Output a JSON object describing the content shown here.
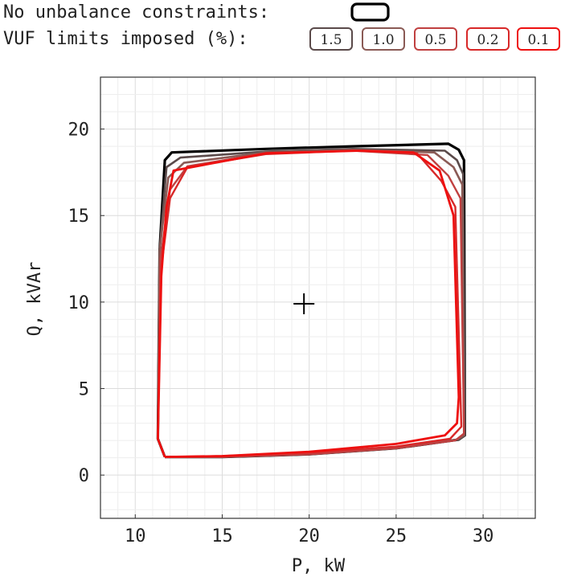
{
  "legend": {
    "no_constraint_label": "No unbalance constraints:",
    "vuf_label": "VUF limits imposed (%):"
  },
  "chart_data": {
    "type": "line",
    "xlabel": "P, kW",
    "ylabel": "Q, kVAr",
    "xlim": [
      8,
      33
    ],
    "ylim": [
      -2.5,
      23
    ],
    "xticks": [
      "10",
      "15",
      "20",
      "25",
      "30"
    ],
    "yticks": [
      "0",
      "5",
      "10",
      "15",
      "20"
    ],
    "grid": true,
    "marker": {
      "x": 19.7,
      "y": 9.9,
      "symbol": "+"
    },
    "series": [
      {
        "name": "No unbalance constraints",
        "color": "#000000",
        "width": 3.2,
        "points": [
          [
            11.7,
            1.05
          ],
          [
            11.3,
            2.1
          ],
          [
            11.4,
            13.0
          ],
          [
            11.7,
            18.2
          ],
          [
            12.1,
            18.65
          ],
          [
            17.5,
            18.85
          ],
          [
            22.5,
            19.0
          ],
          [
            28.0,
            19.15
          ],
          [
            28.6,
            18.8
          ],
          [
            28.9,
            18.2
          ],
          [
            28.95,
            2.3
          ],
          [
            28.6,
            2.05
          ],
          [
            25.0,
            1.55
          ],
          [
            20.0,
            1.2
          ],
          [
            15.0,
            1.05
          ],
          [
            11.7,
            1.05
          ]
        ]
      },
      {
        "name": "1.5",
        "color": "#5a4a4a",
        "width": 2.6,
        "points": [
          [
            11.7,
            1.05
          ],
          [
            11.3,
            2.1
          ],
          [
            11.4,
            13.0
          ],
          [
            11.8,
            17.8
          ],
          [
            12.6,
            18.35
          ],
          [
            17.5,
            18.7
          ],
          [
            22.5,
            18.85
          ],
          [
            27.8,
            18.75
          ],
          [
            28.5,
            18.2
          ],
          [
            28.85,
            17.4
          ],
          [
            28.95,
            2.3
          ],
          [
            28.6,
            2.05
          ],
          [
            25.0,
            1.55
          ],
          [
            20.0,
            1.2
          ],
          [
            15.0,
            1.05
          ],
          [
            11.7,
            1.05
          ]
        ]
      },
      {
        "name": "1.0",
        "color": "#8a5a55",
        "width": 2.6,
        "points": [
          [
            11.7,
            1.05
          ],
          [
            11.3,
            2.1
          ],
          [
            11.4,
            13.0
          ],
          [
            11.9,
            17.2
          ],
          [
            12.8,
            18.05
          ],
          [
            17.5,
            18.65
          ],
          [
            22.5,
            18.8
          ],
          [
            27.2,
            18.65
          ],
          [
            28.3,
            17.8
          ],
          [
            28.8,
            16.8
          ],
          [
            28.9,
            2.3
          ],
          [
            28.5,
            2.05
          ],
          [
            25.0,
            1.55
          ],
          [
            20.0,
            1.2
          ],
          [
            15.0,
            1.05
          ],
          [
            11.7,
            1.05
          ]
        ]
      },
      {
        "name": "0.5",
        "color": "#c04040",
        "width": 2.4,
        "points": [
          [
            11.7,
            1.05
          ],
          [
            11.3,
            2.1
          ],
          [
            11.45,
            12.5
          ],
          [
            12.0,
            16.5
          ],
          [
            13.0,
            17.85
          ],
          [
            17.5,
            18.6
          ],
          [
            22.5,
            18.75
          ],
          [
            26.8,
            18.5
          ],
          [
            28.0,
            17.3
          ],
          [
            28.7,
            16.0
          ],
          [
            28.9,
            2.4
          ],
          [
            28.4,
            2.0
          ],
          [
            25.0,
            1.55
          ],
          [
            20.0,
            1.2
          ],
          [
            15.0,
            1.05
          ],
          [
            11.7,
            1.05
          ]
        ]
      },
      {
        "name": "0.2",
        "color": "#d82828",
        "width": 2.4,
        "points": [
          [
            11.7,
            1.05
          ],
          [
            11.3,
            2.1
          ],
          [
            11.5,
            12.0
          ],
          [
            12.0,
            16.0
          ],
          [
            13.0,
            17.8
          ],
          [
            17.5,
            18.55
          ],
          [
            22.5,
            18.75
          ],
          [
            26.2,
            18.6
          ],
          [
            27.6,
            17.0
          ],
          [
            28.4,
            15.5
          ],
          [
            28.75,
            2.8
          ],
          [
            28.1,
            2.1
          ],
          [
            25.0,
            1.65
          ],
          [
            20.0,
            1.3
          ],
          [
            15.0,
            1.1
          ],
          [
            11.7,
            1.05
          ]
        ]
      },
      {
        "name": "0.1",
        "color": "#ee1010",
        "width": 2.8,
        "points": [
          [
            11.7,
            1.05
          ],
          [
            11.3,
            2.1
          ],
          [
            11.5,
            11.5
          ],
          [
            11.8,
            15.5
          ],
          [
            12.2,
            17.6
          ],
          [
            17.5,
            18.6
          ],
          [
            23.0,
            18.75
          ],
          [
            26.0,
            18.65
          ],
          [
            27.5,
            17.6
          ],
          [
            28.3,
            15.0
          ],
          [
            28.6,
            4.5
          ],
          [
            28.5,
            3.0
          ],
          [
            27.8,
            2.3
          ],
          [
            25.0,
            1.8
          ],
          [
            20.0,
            1.35
          ],
          [
            15.0,
            1.1
          ],
          [
            11.7,
            1.05
          ]
        ]
      }
    ]
  }
}
